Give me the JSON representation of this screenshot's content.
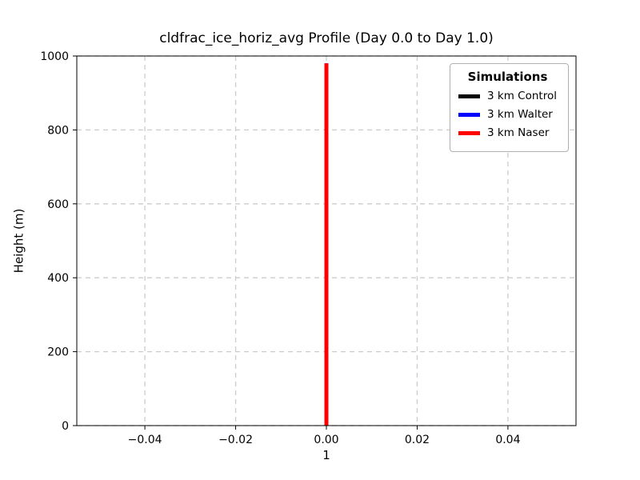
{
  "figure": {
    "background": "#ffffff"
  },
  "chart_data": {
    "type": "line",
    "title": "cldfrac_ice_horiz_avg Profile (Day 0.0 to Day 1.0)",
    "xlabel": "1",
    "ylabel": "Height (m)",
    "xlim": [
      -0.055,
      0.055
    ],
    "ylim": [
      0,
      1000
    ],
    "xticks": [
      -0.04,
      -0.02,
      0,
      0.02,
      0.04
    ],
    "xtick_labels": [
      "−0.04",
      "−0.02",
      "0.00",
      "0.02",
      "0.04"
    ],
    "yticks": [
      0,
      200,
      400,
      600,
      800,
      1000
    ],
    "ytick_labels": [
      "0",
      "200",
      "400",
      "600",
      "800",
      "1000"
    ],
    "grid": true,
    "grid_color": "#cccccc",
    "grid_dash": "6 5",
    "spine_color": "#000000",
    "legend": {
      "title": "Simulations",
      "position": "upper-right",
      "entries": [
        {
          "label": "3 km Control",
          "color": "#000000"
        },
        {
          "label": "3 km Walter",
          "color": "#0000ff"
        },
        {
          "label": "3 km Naser",
          "color": "#ff0000"
        }
      ]
    },
    "series": [
      {
        "name": "3 km Control",
        "color": "#000000",
        "linewidth": 5,
        "x": [
          0,
          0
        ],
        "y": [
          0,
          980
        ]
      },
      {
        "name": "3 km Walter",
        "color": "#0000ff",
        "linewidth": 5,
        "x": [
          0,
          0
        ],
        "y": [
          0,
          980
        ]
      },
      {
        "name": "3 km Naser",
        "color": "#ff0000",
        "linewidth": 5,
        "x": [
          0,
          0
        ],
        "y": [
          0,
          980
        ]
      }
    ]
  }
}
